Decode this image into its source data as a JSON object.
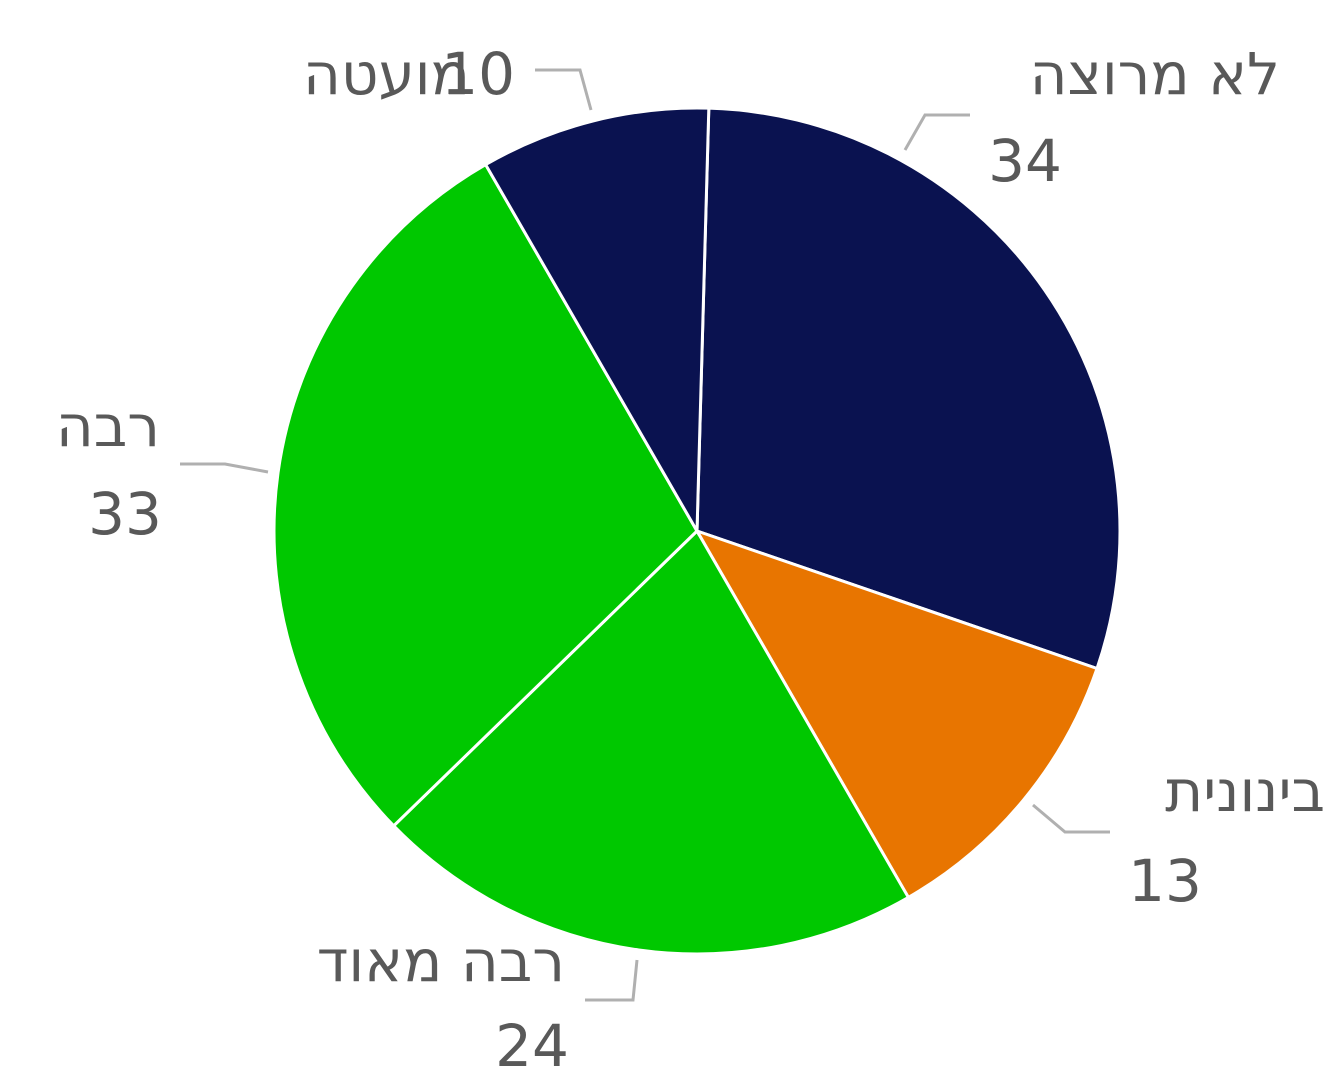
{
  "chart_data": {
    "type": "pie",
    "categories": [
      "לא מרוצה",
      "בינונית",
      "רבה מאוד",
      "רבה",
      "מועטה"
    ],
    "values": [
      34,
      13,
      24,
      33,
      10
    ],
    "colors": [
      "#0a1250",
      "#e87500",
      "#00c800",
      "#00c800",
      "#0a1250"
    ]
  }
}
